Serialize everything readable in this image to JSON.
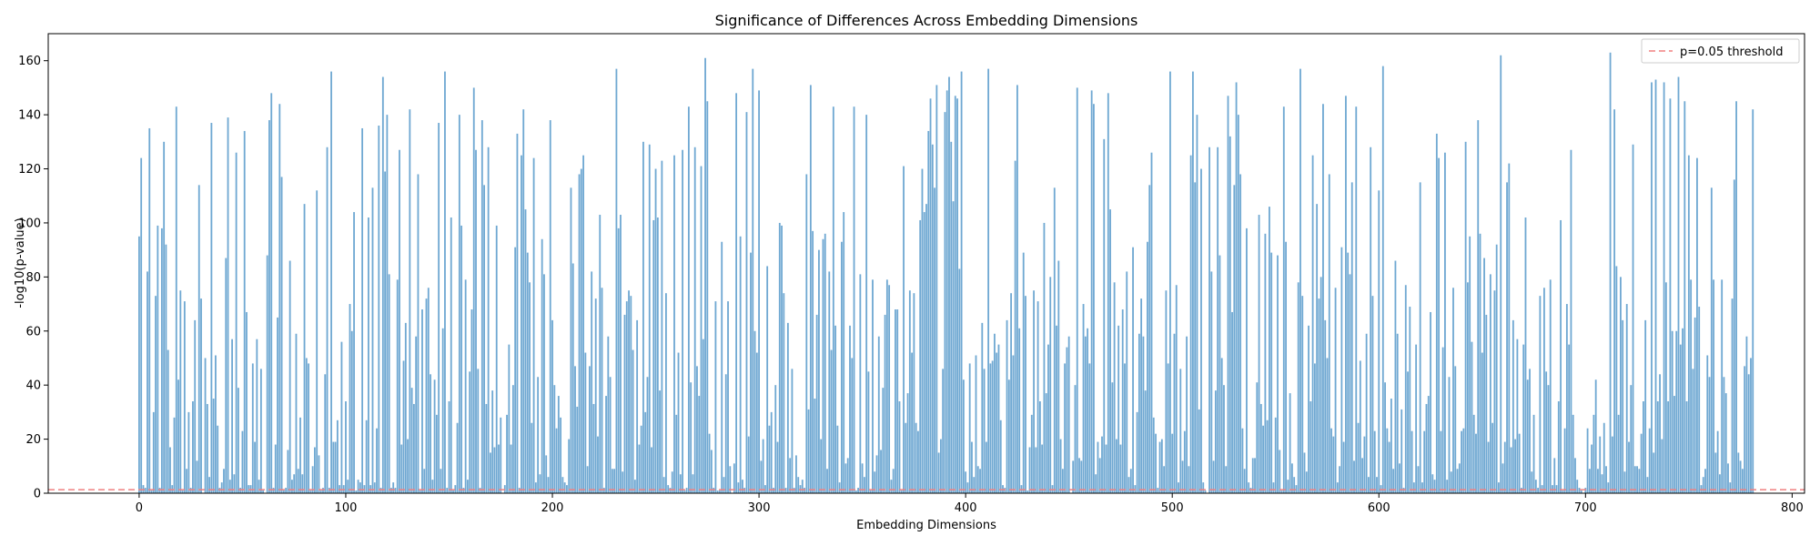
{
  "chart_data": {
    "type": "bar",
    "title": "Significance of Differences Across Embedding Dimensions",
    "xlabel": "Embedding Dimensions",
    "ylabel": "-log10(p-value)",
    "xlim": [
      -44,
      806
    ],
    "ylim": [
      0,
      170
    ],
    "xticks": [
      0,
      100,
      200,
      300,
      400,
      500,
      600,
      700,
      800
    ],
    "yticks": [
      0,
      20,
      40,
      60,
      80,
      100,
      120,
      140,
      160
    ],
    "grid": false,
    "legend": {
      "position": "top-right",
      "entries": [
        "p=0.05 threshold"
      ]
    },
    "bar_color": "#6fa8d2",
    "threshold": {
      "label": "p=0.05 threshold",
      "value": 1.301,
      "color": "#f08080",
      "style": "dashed"
    },
    "x_start": 0,
    "x_step": 1,
    "values": [
      95,
      124,
      3,
      2,
      82,
      135,
      1,
      30,
      73,
      99,
      2,
      98,
      130,
      92,
      53,
      17,
      3,
      28,
      143,
      42,
      75,
      1,
      71,
      9,
      30,
      2,
      34,
      64,
      12,
      114,
      72,
      0,
      50,
      33,
      6,
      137,
      35,
      51,
      25,
      2,
      4,
      9,
      87,
      139,
      5,
      57,
      7,
      126,
      39,
      2,
      23,
      134,
      67,
      3,
      3,
      48,
      19,
      57,
      5,
      46,
      1,
      0,
      88,
      138,
      148,
      2,
      18,
      65,
      144,
      117,
      1,
      2,
      16,
      86,
      5,
      7,
      59,
      9,
      28,
      7,
      107,
      50,
      48,
      1,
      10,
      17,
      112,
      14,
      1,
      2,
      44,
      128,
      2,
      156,
      19,
      19,
      27,
      3,
      56,
      3,
      34,
      5,
      70,
      60,
      104,
      1,
      5,
      4,
      135,
      3,
      27,
      102,
      3,
      113,
      4,
      24,
      136,
      2,
      154,
      119,
      140,
      81,
      2,
      4,
      2,
      79,
      127,
      18,
      49,
      63,
      20,
      142,
      39,
      33,
      58,
      118,
      1,
      68,
      9,
      72,
      76,
      44,
      5,
      42,
      29,
      137,
      9,
      61,
      156,
      2,
      34,
      102,
      1,
      3,
      26,
      140,
      99,
      2,
      79,
      5,
      45,
      68,
      150,
      127,
      46,
      2,
      138,
      114,
      33,
      128,
      15,
      38,
      17,
      99,
      18,
      28,
      0,
      3,
      29,
      55,
      18,
      40,
      91,
      133,
      2,
      125,
      142,
      105,
      89,
      78,
      26,
      124,
      4,
      43,
      7,
      94,
      81,
      14,
      6,
      138,
      64,
      40,
      24,
      36,
      28,
      6,
      4,
      3,
      20,
      113,
      85,
      47,
      32,
      118,
      120,
      125,
      52,
      10,
      47,
      82,
      33,
      72,
      21,
      103,
      76,
      2,
      36,
      58,
      43,
      9,
      9,
      157,
      98,
      103,
      8,
      66,
      71,
      75,
      73,
      53,
      5,
      64,
      18,
      25,
      130,
      30,
      43,
      129,
      17,
      101,
      120,
      102,
      38,
      123,
      6,
      74,
      3,
      2,
      8,
      125,
      29,
      52,
      7,
      127,
      1,
      2,
      143,
      41,
      7,
      128,
      47,
      36,
      121,
      57,
      161,
      145,
      22,
      16,
      2,
      71,
      1,
      1,
      93,
      6,
      44,
      71,
      10,
      0,
      11,
      148,
      4,
      95,
      5,
      2,
      141,
      21,
      89,
      157,
      60,
      52,
      149,
      12,
      20,
      3,
      84,
      25,
      30,
      2,
      40,
      19,
      100,
      99,
      74,
      2,
      63,
      13,
      46,
      2,
      14,
      6,
      3,
      5,
      2,
      118,
      31,
      151,
      97,
      35,
      66,
      90,
      20,
      94,
      96,
      9,
      82,
      53,
      143,
      62,
      25,
      4,
      93,
      104,
      11,
      13,
      62,
      50,
      143,
      1,
      2,
      81,
      11,
      6,
      140,
      45,
      1,
      79,
      8,
      14,
      58,
      16,
      39,
      66,
      79,
      77,
      5,
      9,
      68,
      68,
      34,
      1,
      121,
      26,
      37,
      75,
      52,
      74,
      26,
      23,
      101,
      120,
      104,
      107,
      134,
      146,
      129,
      113,
      151,
      15,
      20,
      46,
      141,
      149,
      154,
      130,
      108,
      147,
      146,
      83,
      156,
      42,
      8,
      4,
      48,
      19,
      6,
      51,
      10,
      9,
      63,
      46,
      19,
      157,
      48,
      49,
      59,
      52,
      55,
      27,
      3,
      2,
      64,
      42,
      74,
      51,
      123,
      151,
      61,
      3,
      89,
      73,
      1,
      17,
      29,
      75,
      17,
      71,
      34,
      18,
      100,
      37,
      55,
      80,
      3,
      113,
      62,
      86,
      20,
      9,
      48,
      54,
      58,
      0,
      12,
      40,
      150,
      13,
      12,
      70,
      58,
      61,
      48,
      149,
      144,
      7,
      19,
      13,
      21,
      131,
      18,
      148,
      105,
      41,
      78,
      20,
      62,
      18,
      68,
      48,
      82,
      6,
      9,
      91,
      3,
      30,
      59,
      72,
      58,
      38,
      93,
      114,
      126,
      28,
      22,
      2,
      19,
      20,
      10,
      75,
      48,
      156,
      22,
      59,
      77,
      4,
      46,
      12,
      23,
      58,
      10,
      125,
      156,
      115,
      140,
      31,
      120,
      4,
      1,
      0,
      128,
      82,
      12,
      38,
      128,
      88,
      50,
      40,
      10,
      147,
      132,
      67,
      114,
      152,
      140,
      118,
      24,
      9,
      98,
      4,
      2,
      13,
      13,
      41,
      103,
      33,
      25,
      96,
      27,
      106,
      89,
      4,
      28,
      88,
      16,
      1,
      143,
      93,
      5,
      37,
      11,
      6,
      3,
      78,
      157,
      73,
      15,
      8,
      62,
      34,
      125,
      48,
      107,
      72,
      80,
      144,
      64,
      50,
      118,
      24,
      21,
      76,
      4,
      10,
      91,
      19,
      147,
      89,
      81,
      115,
      12,
      143,
      26,
      49,
      13,
      21,
      59,
      6,
      128,
      73,
      23,
      6,
      112,
      3,
      158,
      41,
      24,
      19,
      35,
      9,
      86,
      59,
      11,
      31,
      2,
      77,
      45,
      69,
      23,
      4,
      55,
      10,
      115,
      4,
      23,
      33,
      36,
      67,
      7,
      5,
      133,
      124,
      23,
      54,
      126,
      5,
      43,
      8,
      76,
      47,
      9,
      11,
      23,
      24,
      130,
      78,
      95,
      56,
      29,
      22,
      138,
      96,
      52,
      87,
      66,
      19,
      81,
      26,
      75,
      92,
      4,
      162,
      11,
      19,
      115,
      122,
      17,
      64,
      20,
      57,
      22,
      2,
      55,
      102,
      42,
      46,
      8,
      29,
      5,
      2,
      73,
      3,
      76,
      45,
      40,
      79,
      3,
      13,
      3,
      34,
      101,
      1,
      24,
      70,
      55,
      127,
      29,
      13,
      5,
      2,
      1,
      0,
      2,
      24,
      9,
      18,
      29,
      42,
      9,
      21,
      7,
      26,
      10,
      4,
      163,
      21,
      142,
      84,
      29,
      80,
      64,
      8,
      70,
      19,
      40,
      129,
      10,
      10,
      9,
      22,
      34,
      64,
      6,
      24,
      152,
      15,
      153,
      34,
      44,
      20,
      152,
      78,
      34,
      146,
      60,
      36,
      60,
      154,
      55,
      61,
      145,
      34,
      125,
      79,
      46,
      65,
      124,
      69,
      3,
      6,
      9,
      51,
      43,
      113,
      79,
      15,
      23,
      7,
      79,
      43,
      37,
      11,
      4,
      72,
      116,
      145,
      15,
      12,
      9,
      47,
      58,
      44,
      50,
      142
    ]
  }
}
